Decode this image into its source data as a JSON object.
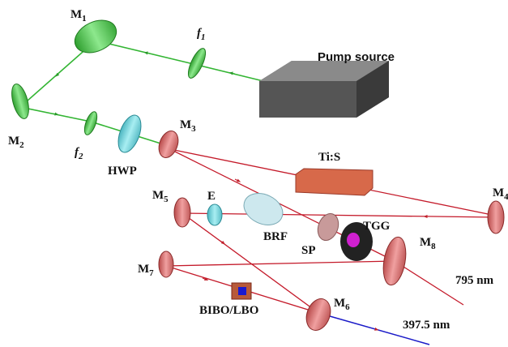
{
  "labels": {
    "m1": {
      "main": "M",
      "sub": "1"
    },
    "f1": {
      "main": "f",
      "sub": "1"
    },
    "pump": "Pump source",
    "m2": {
      "main": "M",
      "sub": "2"
    },
    "f2": {
      "main": "f",
      "sub": "2"
    },
    "hwp": "HWP",
    "m3": {
      "main": "M",
      "sub": "3"
    },
    "tis": "Ti:S",
    "m4": {
      "main": "M",
      "sub": "4"
    },
    "m5": {
      "main": "M",
      "sub": "5"
    },
    "e": "E",
    "brf": "BRF",
    "sp": "SP",
    "tgg": "TGG",
    "m8": {
      "main": "M",
      "sub": "8"
    },
    "m7": {
      "main": "M",
      "sub": "7"
    },
    "out795": "795 nm",
    "m6": {
      "main": "M",
      "sub": "6"
    },
    "bibo": "BIBO/LBO",
    "out397": "397.5 nm"
  }
}
